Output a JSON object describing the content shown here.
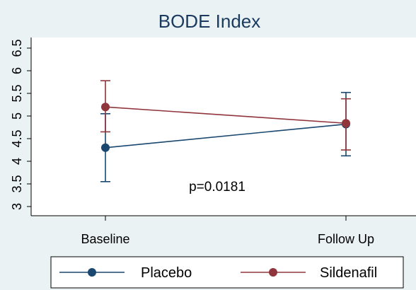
{
  "chart_data": {
    "type": "line",
    "title": "BODE Index",
    "categories": [
      "Baseline",
      "Follow Up"
    ],
    "yticks": [
      "3",
      "3.5",
      "4",
      "4.5",
      "5",
      "5.5",
      "6",
      "6.5"
    ],
    "ylim": [
      2.9,
      6.6
    ],
    "grid": false,
    "legend_position": "bottom",
    "annotation": "p=0.0181",
    "series": [
      {
        "name": "Placebo",
        "color": "#1a476f",
        "values": [
          4.3,
          4.82
        ],
        "ci_low": [
          3.55,
          4.12
        ],
        "ci_high": [
          5.05,
          5.52
        ]
      },
      {
        "name": "Sildenafil",
        "color": "#90353b",
        "values": [
          5.2,
          4.84
        ],
        "ci_low": [
          4.65,
          4.25
        ],
        "ci_high": [
          5.78,
          5.38
        ]
      }
    ]
  }
}
